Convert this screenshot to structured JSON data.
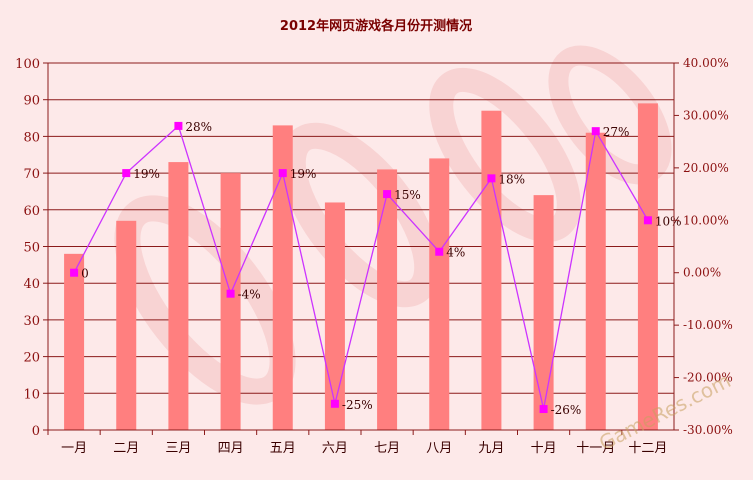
{
  "chart_data": {
    "type": "bar",
    "title": "2012年网页游戏各月份开测情况",
    "categories": [
      "一月",
      "二月",
      "三月",
      "四月",
      "五月",
      "六月",
      "七月",
      "八月",
      "九月",
      "十月",
      "十一月",
      "十二月"
    ],
    "series": [
      {
        "type": "bar",
        "axis": "left",
        "values": [
          48,
          57,
          73,
          70,
          83,
          62,
          71,
          74,
          87,
          64,
          81,
          89
        ]
      },
      {
        "type": "line",
        "axis": "right",
        "values": [
          0,
          19,
          28,
          -4,
          19,
          -25,
          15,
          4,
          18,
          -26,
          27,
          10
        ],
        "labels": [
          "0",
          "19%",
          "28%",
          "-4%",
          "19%",
          "-25%",
          "15%",
          "4%",
          "18%",
          "-26%",
          "27%",
          "10%"
        ]
      }
    ],
    "left_axis": {
      "min": 0,
      "max": 100,
      "step": 10,
      "ticks": [
        "0",
        "10",
        "20",
        "30",
        "40",
        "50",
        "60",
        "70",
        "80",
        "90",
        "100"
      ]
    },
    "right_axis": {
      "min": -30,
      "max": 40,
      "step": 10,
      "ticks": [
        "-30.00%",
        "-20.00%",
        "-10.00%",
        "0.00%",
        "10.00%",
        "20.00%",
        "30.00%",
        "40.00%"
      ]
    },
    "grid": true,
    "colors": {
      "bar": "#ff7f7f",
      "line": "#cc33ff",
      "marker": "#ff00ff",
      "grid": "#8b1a1a",
      "background": "#fde9e9"
    }
  },
  "watermark": {
    "text": "GameRes.com"
  }
}
